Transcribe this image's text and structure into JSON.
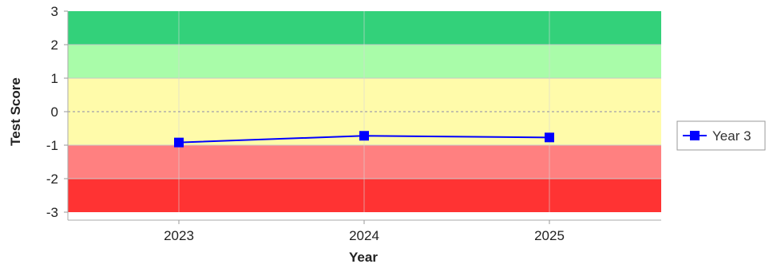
{
  "chart_data": {
    "type": "line",
    "xlabel": "Year",
    "ylabel": "Test Score",
    "categories": [
      "2023",
      "2024",
      "2025"
    ],
    "ylim": [
      -3,
      3
    ],
    "y_ticks": [
      "3",
      "2",
      "1",
      "0",
      "-1",
      "-2",
      "-3"
    ],
    "series": [
      {
        "name": "Year 3",
        "values": [
          -0.92,
          -0.72,
          -0.77
        ],
        "color": "#0000ff"
      }
    ],
    "bands": [
      {
        "from": 2,
        "to": 3,
        "color": "#33d17a"
      },
      {
        "from": 1,
        "to": 2,
        "color": "#a9fca9"
      },
      {
        "from": -1,
        "to": 1,
        "color": "#fffbaa"
      },
      {
        "from": -2,
        "to": -1,
        "color": "#ff8080"
      },
      {
        "from": -3,
        "to": -2,
        "color": "#ff3333"
      }
    ],
    "zero_line": {
      "style": "dashed",
      "color": "#8888aa"
    },
    "legend_position": "right",
    "grid": false
  }
}
